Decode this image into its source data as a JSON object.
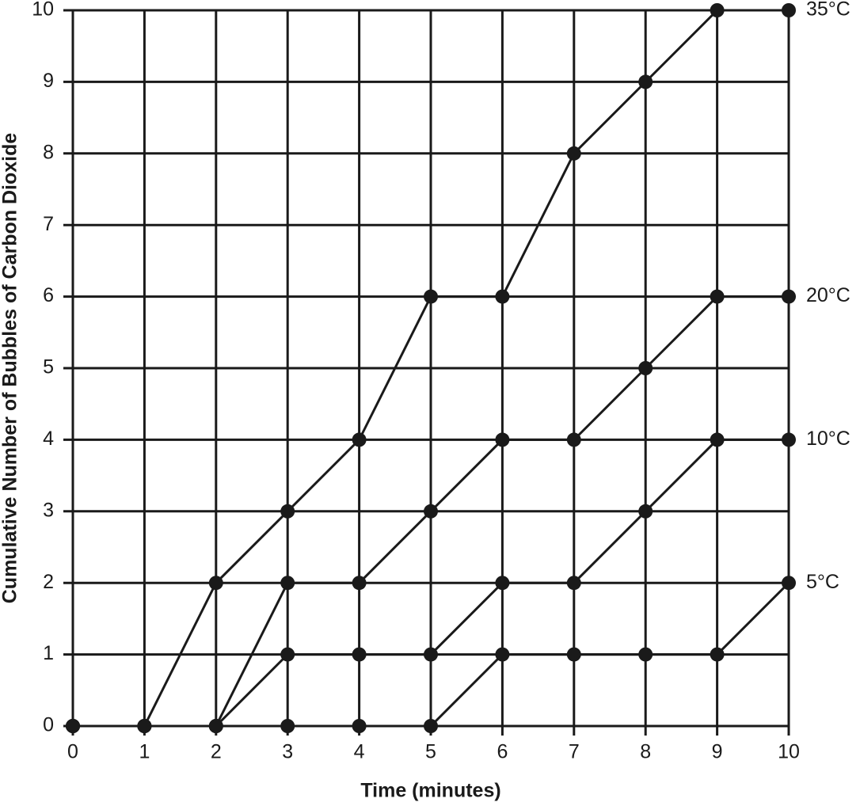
{
  "chart_data": {
    "type": "line",
    "x_label": "Time (minutes)",
    "y_label": "Cumulative Number of Bubbles of Carbon Dioxide",
    "x": [
      0,
      1,
      2,
      3,
      4,
      5,
      6,
      7,
      8,
      9,
      10
    ],
    "series": [
      {
        "name": "35°C",
        "color": "#1a1a1a",
        "values": [
          0,
          0,
          2,
          3,
          4,
          6,
          6,
          8,
          9,
          10,
          10
        ]
      },
      {
        "name": "20°C",
        "color": "#1a1a1a",
        "values": [
          0,
          0,
          0,
          2,
          2,
          3,
          4,
          4,
          5,
          6,
          6
        ]
      },
      {
        "name": "10°C",
        "color": "#1a1a1a",
        "values": [
          0,
          0,
          0,
          1,
          1,
          1,
          2,
          2,
          3,
          4,
          4
        ]
      },
      {
        "name": "5°C",
        "color": "#1a1a1a",
        "values": [
          0,
          0,
          0,
          0,
          0,
          0,
          1,
          1,
          1,
          1,
          2
        ]
      }
    ],
    "xlim": [
      0,
      10
    ],
    "ylim": [
      0,
      10
    ],
    "xticks": [
      0,
      1,
      2,
      3,
      4,
      5,
      6,
      7,
      8,
      9,
      10
    ],
    "yticks": [
      0,
      1,
      2,
      3,
      4,
      5,
      6,
      7,
      8,
      9,
      10
    ],
    "grid": true
  }
}
